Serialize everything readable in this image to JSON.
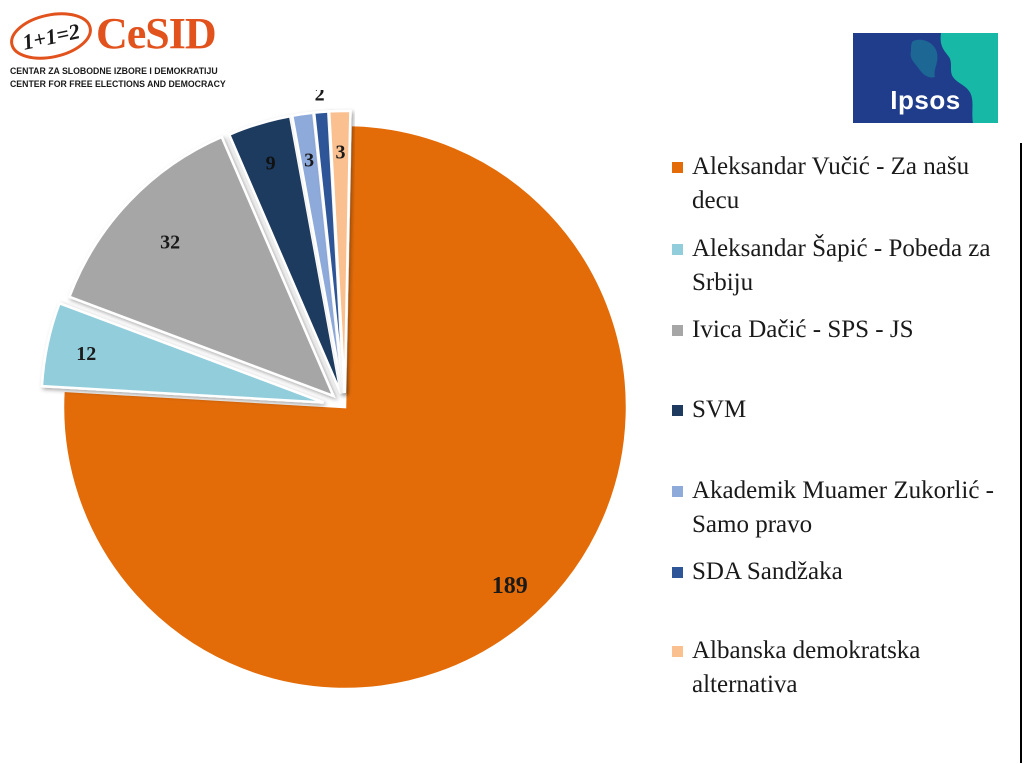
{
  "logos": {
    "cesid": {
      "badge_text": "1+1=2",
      "name": "CeSID",
      "subtitle_line1": "CENTAR ZA SLOBODNE IZBORE I DEMOKRATIJU",
      "subtitle_line2": "CENTER FOR FREE ELECTIONS AND DEMOCRACY",
      "color": "#e2521d"
    },
    "ipsos": {
      "name": "Ipsos",
      "color_blue": "#1f3d8b",
      "color_teal": "#17b8a6"
    }
  },
  "chart_data": {
    "type": "pie",
    "title": "",
    "exploded_small_slices": true,
    "legend_position": "right",
    "series": [
      {
        "name": "Aleksandar Vučić - Za našu decu",
        "value": 189,
        "color": "#e36c09",
        "label": "189"
      },
      {
        "name": "Aleksandar Šapić - Pobeda za Srbiju",
        "value": 12,
        "color": "#92cddc",
        "label": "12"
      },
      {
        "name": "Ivica Dačić - SPS - JS",
        "value": 32,
        "color": "#a6a6a6",
        "label": "32"
      },
      {
        "name": "SVM",
        "value": 9,
        "color": "#1f3a5f",
        "label": "9"
      },
      {
        "name": "Akademik Muamer Zukorlić - Samo pravo",
        "value": 3,
        "color": "#8eaadb",
        "label": "3"
      },
      {
        "name": "SDA Sandžaka",
        "value": 2,
        "color": "#2e5597",
        "label": "2"
      },
      {
        "name": "Albanska demokratska alternativa",
        "value": 3,
        "color": "#fac090",
        "label": "3"
      }
    ]
  }
}
